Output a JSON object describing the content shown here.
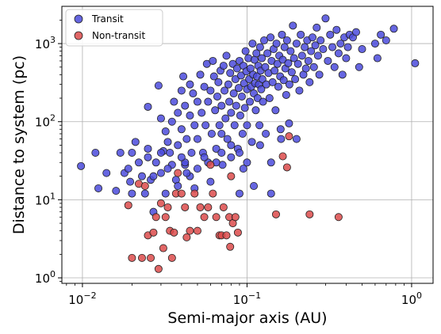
{
  "chart_data": {
    "type": "scatter",
    "title": "",
    "xlabel": "Semi-major axis (AU)",
    "ylabel": "Distance to system (pc)",
    "xscale": "log",
    "yscale": "log",
    "xlim": [
      0.0075,
      1.35
    ],
    "ylim": [
      0.85,
      3000
    ],
    "xticks": [
      0.01,
      0.1,
      1
    ],
    "xtick_labels": [
      {
        "base": "10",
        "exp": "−2"
      },
      {
        "base": "10",
        "exp": "−1"
      },
      {
        "base": "10",
        "exp": "0"
      }
    ],
    "yticks": [
      1,
      10,
      100,
      1000
    ],
    "ytick_labels": [
      {
        "base": "10",
        "exp": "0"
      },
      {
        "base": "10",
        "exp": "1"
      },
      {
        "base": "10",
        "exp": "2"
      },
      {
        "base": "10",
        "exp": "3"
      }
    ],
    "grid": true,
    "legend_position": "top-left",
    "series": [
      {
        "name": "Transit",
        "color": "#4b4bdc",
        "points": [
          [
            0.0098,
            27
          ],
          [
            0.012,
            40
          ],
          [
            0.0125,
            14
          ],
          [
            0.014,
            22
          ],
          [
            0.016,
            13
          ],
          [
            0.017,
            40
          ],
          [
            0.018,
            22
          ],
          [
            0.019,
            25
          ],
          [
            0.0195,
            17
          ],
          [
            0.02,
            40
          ],
          [
            0.02,
            12
          ],
          [
            0.021,
            55
          ],
          [
            0.022,
            30
          ],
          [
            0.023,
            20
          ],
          [
            0.024,
            12
          ],
          [
            0.025,
            155
          ],
          [
            0.025,
            45
          ],
          [
            0.026,
            18
          ],
          [
            0.027,
            7
          ],
          [
            0.028,
            30
          ],
          [
            0.029,
            290
          ],
          [
            0.03,
            110
          ],
          [
            0.03,
            22
          ],
          [
            0.031,
            42
          ],
          [
            0.032,
            75
          ],
          [
            0.032,
            12
          ],
          [
            0.033,
            55
          ],
          [
            0.034,
            40
          ],
          [
            0.035,
            100
          ],
          [
            0.035,
            28
          ],
          [
            0.036,
            180
          ],
          [
            0.037,
            18
          ],
          [
            0.038,
            130
          ],
          [
            0.038,
            50
          ],
          [
            0.04,
            250
          ],
          [
            0.04,
            80
          ],
          [
            0.041,
            380
          ],
          [
            0.042,
            160
          ],
          [
            0.042,
            28
          ],
          [
            0.043,
            60
          ],
          [
            0.045,
            300
          ],
          [
            0.045,
            120
          ],
          [
            0.046,
            40
          ],
          [
            0.047,
            230
          ],
          [
            0.048,
            90
          ],
          [
            0.048,
            14
          ],
          [
            0.05,
            180
          ],
          [
            0.05,
            60
          ],
          [
            0.052,
            400
          ],
          [
            0.053,
            130
          ],
          [
            0.054,
            40
          ],
          [
            0.055,
            280
          ],
          [
            0.056,
            90
          ],
          [
            0.057,
            550
          ],
          [
            0.058,
            180
          ],
          [
            0.058,
            30
          ],
          [
            0.06,
            250
          ],
          [
            0.061,
            70
          ],
          [
            0.062,
            600
          ],
          [
            0.063,
            380
          ],
          [
            0.064,
            140
          ],
          [
            0.065,
            45
          ],
          [
            0.066,
            210
          ],
          [
            0.067,
            320
          ],
          [
            0.068,
            90
          ],
          [
            0.069,
            450
          ],
          [
            0.07,
            160
          ],
          [
            0.071,
            28
          ],
          [
            0.072,
            520
          ],
          [
            0.073,
            250
          ],
          [
            0.074,
            110
          ],
          [
            0.075,
            700
          ],
          [
            0.076,
            60
          ],
          [
            0.077,
            300
          ],
          [
            0.078,
            180
          ],
          [
            0.079,
            420
          ],
          [
            0.08,
            130
          ],
          [
            0.08,
            35
          ],
          [
            0.082,
            550
          ],
          [
            0.083,
            230
          ],
          [
            0.084,
            90
          ],
          [
            0.085,
            350
          ],
          [
            0.086,
            160
          ],
          [
            0.087,
            480
          ],
          [
            0.088,
            45
          ],
          [
            0.089,
            270
          ],
          [
            0.09,
            600
          ],
          [
            0.091,
            120
          ],
          [
            0.092,
            390
          ],
          [
            0.093,
            210
          ],
          [
            0.094,
            70
          ],
          [
            0.095,
            520
          ],
          [
            0.096,
            310
          ],
          [
            0.097,
            150
          ],
          [
            0.098,
            800
          ],
          [
            0.099,
            440
          ],
          [
            0.1,
            260
          ],
          [
            0.1,
            90
          ],
          [
            0.102,
            650
          ],
          [
            0.103,
            350
          ],
          [
            0.104,
            180
          ],
          [
            0.105,
            480
          ],
          [
            0.106,
            280
          ],
          [
            0.107,
            55
          ],
          [
            0.108,
            1000
          ],
          [
            0.109,
            400
          ],
          [
            0.11,
            230
          ],
          [
            0.111,
            620
          ],
          [
            0.112,
            310
          ],
          [
            0.113,
            140
          ],
          [
            0.114,
            750
          ],
          [
            0.115,
            380
          ],
          [
            0.116,
            200
          ],
          [
            0.117,
            520
          ],
          [
            0.118,
            300
          ],
          [
            0.119,
            90
          ],
          [
            0.12,
            900
          ],
          [
            0.121,
            450
          ],
          [
            0.122,
            260
          ],
          [
            0.123,
            650
          ],
          [
            0.124,
            350
          ],
          [
            0.125,
            180
          ],
          [
            0.127,
            1100
          ],
          [
            0.129,
            500
          ],
          [
            0.131,
            300
          ],
          [
            0.133,
            750
          ],
          [
            0.135,
            420
          ],
          [
            0.137,
            200
          ],
          [
            0.139,
            1200
          ],
          [
            0.141,
            600
          ],
          [
            0.143,
            320
          ],
          [
            0.145,
            850
          ],
          [
            0.147,
            450
          ],
          [
            0.149,
            140
          ],
          [
            0.151,
            1000
          ],
          [
            0.153,
            550
          ],
          [
            0.155,
            280
          ],
          [
            0.157,
            700
          ],
          [
            0.159,
            380
          ],
          [
            0.161,
            60
          ],
          [
            0.163,
            1300
          ],
          [
            0.165,
            620
          ],
          [
            0.167,
            340
          ],
          [
            0.169,
            900
          ],
          [
            0.171,
            480
          ],
          [
            0.173,
            220
          ],
          [
            0.175,
            1100
          ],
          [
            0.178,
            560
          ],
          [
            0.181,
            300
          ],
          [
            0.184,
            800
          ],
          [
            0.187,
            430
          ],
          [
            0.19,
            1700
          ],
          [
            0.193,
            650
          ],
          [
            0.196,
            350
          ],
          [
            0.2,
            1000
          ],
          [
            0.204,
            550
          ],
          [
            0.208,
            250
          ],
          [
            0.212,
            1300
          ],
          [
            0.216,
            700
          ],
          [
            0.22,
            400
          ],
          [
            0.224,
            900
          ],
          [
            0.228,
            480
          ],
          [
            0.232,
            1100
          ],
          [
            0.236,
            600
          ],
          [
            0.24,
            320
          ],
          [
            0.245,
            800
          ],
          [
            0.25,
            1200
          ],
          [
            0.255,
            500
          ],
          [
            0.26,
            950
          ],
          [
            0.265,
            1600
          ],
          [
            0.27,
            700
          ],
          [
            0.275,
            400
          ],
          [
            0.28,
            1100
          ],
          [
            0.29,
            850
          ],
          [
            0.3,
            2100
          ],
          [
            0.31,
            600
          ],
          [
            0.32,
            1300
          ],
          [
            0.33,
            900
          ],
          [
            0.34,
            500
          ],
          [
            0.35,
            1500
          ],
          [
            0.36,
            750
          ],
          [
            0.37,
            1000
          ],
          [
            0.38,
            400
          ],
          [
            0.39,
            1200
          ],
          [
            0.4,
            650
          ],
          [
            0.41,
            900
          ],
          [
            0.42,
            1300
          ],
          [
            0.44,
            1200
          ],
          [
            0.46,
            1400
          ],
          [
            0.48,
            500
          ],
          [
            0.5,
            850
          ],
          [
            0.6,
            1000
          ],
          [
            0.62,
            650
          ],
          [
            0.65,
            1300
          ],
          [
            0.7,
            1100
          ],
          [
            0.78,
            1550
          ],
          [
            1.05,
            560
          ],
          [
            0.045,
            20
          ],
          [
            0.05,
            25
          ],
          [
            0.055,
            35
          ],
          [
            0.06,
            17
          ],
          [
            0.065,
            30
          ],
          [
            0.07,
            40
          ],
          [
            0.09,
            40
          ],
          [
            0.095,
            25
          ],
          [
            0.1,
            30
          ],
          [
            0.11,
            15
          ],
          [
            0.12,
            50
          ],
          [
            0.13,
            70
          ],
          [
            0.14,
            30
          ],
          [
            0.16,
            80
          ],
          [
            0.18,
            95
          ],
          [
            0.2,
            60
          ],
          [
            0.14,
            12
          ],
          [
            0.03,
            40
          ],
          [
            0.025,
            35
          ],
          [
            0.027,
            20
          ],
          [
            0.033,
            25
          ],
          [
            0.038,
            15
          ],
          [
            0.042,
            30
          ],
          [
            0.07,
            70
          ],
          [
            0.08,
            50
          ],
          [
            0.09,
            12
          ],
          [
            0.04,
            35
          ],
          [
            0.043,
            22
          ]
        ]
      },
      {
        "name": "Non-transit",
        "color": "#dc4b4b",
        "points": [
          [
            0.019,
            8.5
          ],
          [
            0.02,
            1.8
          ],
          [
            0.022,
            16
          ],
          [
            0.023,
            1.8
          ],
          [
            0.024,
            15
          ],
          [
            0.025,
            3.5
          ],
          [
            0.026,
            1.8
          ],
          [
            0.027,
            3.8
          ],
          [
            0.028,
            6
          ],
          [
            0.029,
            1.3
          ],
          [
            0.03,
            9
          ],
          [
            0.031,
            2.4
          ],
          [
            0.032,
            6
          ],
          [
            0.033,
            8
          ],
          [
            0.034,
            4
          ],
          [
            0.035,
            1.8
          ],
          [
            0.036,
            3.8
          ],
          [
            0.037,
            12
          ],
          [
            0.038,
            22
          ],
          [
            0.04,
            12
          ],
          [
            0.042,
            8
          ],
          [
            0.043,
            3.3
          ],
          [
            0.045,
            4
          ],
          [
            0.048,
            12
          ],
          [
            0.05,
            4
          ],
          [
            0.052,
            8
          ],
          [
            0.055,
            6
          ],
          [
            0.058,
            8
          ],
          [
            0.06,
            28
          ],
          [
            0.062,
            12
          ],
          [
            0.065,
            6
          ],
          [
            0.068,
            3.5
          ],
          [
            0.07,
            3.5
          ],
          [
            0.072,
            8
          ],
          [
            0.075,
            3.5
          ],
          [
            0.078,
            6
          ],
          [
            0.079,
            2.5
          ],
          [
            0.08,
            20
          ],
          [
            0.082,
            5
          ],
          [
            0.085,
            6
          ],
          [
            0.088,
            3.8
          ],
          [
            0.15,
            6.5
          ],
          [
            0.165,
            36
          ],
          [
            0.175,
            26
          ],
          [
            0.24,
            6.5
          ],
          [
            0.36,
            6
          ],
          [
            0.18,
            65
          ]
        ]
      }
    ]
  }
}
